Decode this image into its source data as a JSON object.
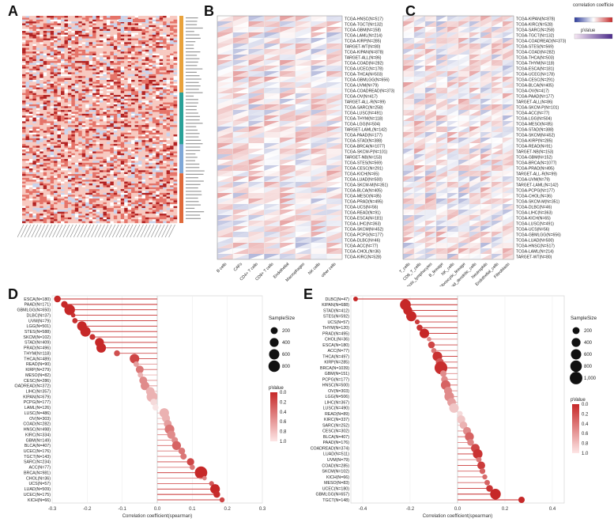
{
  "panels": {
    "A": "A",
    "B": "B",
    "C": "C",
    "D": "D",
    "E": "E"
  },
  "legends": {
    "corr_title": "correlation coefficient",
    "pvalue_title": "pValue",
    "samplesize_title": "SampleSize",
    "pvalue_bubble_title": "pValue"
  },
  "colors": {
    "neg": "#2b3a9a",
    "pos": "#c62828",
    "light_pos": "#f4b6b0",
    "light_neg": "#c7cfe8"
  },
  "heatmap_B": {
    "cells": [
      "B cells",
      "CAFs",
      "CD4+ T cells",
      "CD8+ T cells",
      "Endothelial",
      "Macrophages",
      "NK cells",
      "other cells"
    ],
    "cancers": [
      "TCGA-HNSC(N=517)",
      "TCGA-TGCT(N=132)",
      "TCGA-GBM(N=158)",
      "TCGA-LAML(N=214)",
      "TCGA-KIRP(N=285)",
      "TARGET-WT(N=80)",
      "TCGA-KIPAN(N=878)",
      "TARGET-ALL(N=86)",
      "TCGA-COAD(N=282)",
      "TCGA-UCEC(N=178)",
      "TCGA-THCA(N=503)",
      "TCGA-GBMLGG(N=656)",
      "TCGA-UVM(N=79)",
      "TCGA-COADREAD(N=373)",
      "TCGA-OV(N=417)",
      "TARGET-ALL-R(N=99)",
      "TCGA-SARC(N=258)",
      "TCGA-LUSC(N=491)",
      "TCGA-THYM(N=118)",
      "TCGA-LGG(N=504)",
      "TARGET-LAML(N=142)",
      "TCGA-PAAD(N=177)",
      "TCGA-STAD(N=388)",
      "TCGA-BRCA(N=1077)",
      "TCGA-SKCM-P(N=101)",
      "TARGET-NB(N=153)",
      "TCGA-STES(N=569)",
      "TCGA-CESC(N=291)",
      "TCGA-KICH(N=65)",
      "TCGA-LUAD(N=500)",
      "TCGA-SKCM-M(N=351)",
      "TCGA-BLCA(N=405)",
      "TCGA-MESO(N=85)",
      "TCGA-PRAD(N=495)",
      "TCGA-UCS(N=56)",
      "TCGA-READ(N=91)",
      "TCGA-ESCA(N=181)",
      "TCGA-LIHC(N=363)",
      "TCGA-SKCM(N=452)",
      "TCGA-PCPG(N=177)",
      "TCGA-DLBC(N=46)",
      "TCGA-ACC(N=77)",
      "TCGA-CHOL(N=36)",
      "TCGA-KIRC(N=528)"
    ]
  },
  "heatmap_C": {
    "cells": [
      "T_cells",
      "CD8_T_cells",
      "Cytotoxic_lymphocytes",
      "B_lineage",
      "NK_cells",
      "Monocytic_lineage",
      "Myeloid_dendritic_cells",
      "Neutrophils",
      "Endothelial_cells",
      "Fibroblasts"
    ],
    "cancers": [
      "TCGA-KIPAN(N=878)",
      "TCGA-KIRC(N=528)",
      "TCGA-SARC(N=258)",
      "TCGA-TGCT(N=132)",
      "TCGA-COADREAD(N=373)",
      "TCGA-STES(N=569)",
      "TCGA-COAD(N=282)",
      "TCGA-THCA(N=503)",
      "TCGA-THYM(N=118)",
      "TCGA-ESCA(N=181)",
      "TCGA-UCEC(N=178)",
      "TCGA-CESC(N=291)",
      "TCGA-BLCA(N=405)",
      "TCGA-OV(N=417)",
      "TCGA-PAAD(N=177)",
      "TARGET-ALL(N=86)",
      "TCGA-SKCM-P(N=101)",
      "TCGA-ACC(N=77)",
      "TCGA-LGG(N=504)",
      "TCGA-MESO(N=85)",
      "TCGA-STAD(N=388)",
      "TCGA-SKCM(N=452)",
      "TCGA-KIRP(N=285)",
      "TCGA-READ(N=91)",
      "TARGET-NB(N=153)",
      "TCGA-GBM(N=152)",
      "TCGA-BRCA(N=1077)",
      "TCGA-PRAD(N=495)",
      "TARGET-ALL-R(N=99)",
      "TCGA-UVM(N=79)",
      "TARGET-LAML(N=142)",
      "TCGA-PCPG(N=177)",
      "TCGA-CHOL(N=36)",
      "TCGA-SKCM-M(N=351)",
      "TCGA-DLBC(N=46)",
      "TCGA-LIHC(N=363)",
      "TCGA-KICH(N=65)",
      "TCGA-LUSC(N=491)",
      "TCGA-UCS(N=56)",
      "TCGA-GBMLGG(N=656)",
      "TCGA-LUAD(N=500)",
      "TCGA-HNSC(N=517)",
      "TCGA-LAML(N=214)",
      "TARGET-WT(N=80)"
    ]
  },
  "chart_data": [
    {
      "type": "scatter",
      "panel": "D",
      "xlabel": "Correlation coefficient(spearman)",
      "xlim": [
        -0.3,
        0.3
      ],
      "xticks": [
        -0.3,
        -0.2,
        -0.1,
        0.0,
        0.1,
        0.2,
        0.3
      ],
      "size_legend": [
        200,
        400,
        600,
        800
      ],
      "p_legend": [
        0.0,
        0.2,
        0.4,
        0.6,
        0.8,
        1.0
      ],
      "points": [
        {
          "label": "ESCA(N=180)",
          "x": -0.285,
          "p": 0.0001,
          "n": 180
        },
        {
          "label": "PAAD(N=171)",
          "x": -0.265,
          "p": 0.0005,
          "n": 171
        },
        {
          "label": "GBMLGG(N=650)",
          "x": -0.25,
          "p": 0.0001,
          "n": 650
        },
        {
          "label": "DLBC(N=37)",
          "x": -0.24,
          "p": 0.05,
          "n": 37
        },
        {
          "label": "UVM(N=79)",
          "x": -0.235,
          "p": 0.04,
          "n": 79
        },
        {
          "label": "LGG(N=501)",
          "x": -0.215,
          "p": 0.0001,
          "n": 501
        },
        {
          "label": "STES(N=588)",
          "x": -0.205,
          "p": 0.0001,
          "n": 588
        },
        {
          "label": "SKCM(N=102)",
          "x": -0.185,
          "p": 0.05,
          "n": 102
        },
        {
          "label": "STAD(N=409)",
          "x": -0.165,
          "p": 0.001,
          "n": 409
        },
        {
          "label": "PRAD(N=496)",
          "x": -0.16,
          "p": 0.001,
          "n": 496
        },
        {
          "label": "THYM(N=118)",
          "x": -0.115,
          "p": 0.2,
          "n": 118
        },
        {
          "label": "THCA(N=489)",
          "x": -0.065,
          "p": 0.15,
          "n": 489
        },
        {
          "label": "READ(N=90)",
          "x": -0.06,
          "p": 0.6,
          "n": 90
        },
        {
          "label": "KIRP(N=279)",
          "x": -0.05,
          "p": 0.4,
          "n": 279
        },
        {
          "label": "MESO(N=82)",
          "x": -0.048,
          "p": 0.7,
          "n": 82
        },
        {
          "label": "CESC(N=286)",
          "x": -0.04,
          "p": 0.5,
          "n": 286
        },
        {
          "label": "COADREAD(N=372)",
          "x": -0.035,
          "p": 0.5,
          "n": 372
        },
        {
          "label": "LIHC(N=357)",
          "x": -0.02,
          "p": 0.7,
          "n": 357
        },
        {
          "label": "KIPAN(N=679)",
          "x": -0.015,
          "p": 0.7,
          "n": 679
        },
        {
          "label": "PCPG(N=177)",
          "x": -0.01,
          "p": 0.9,
          "n": 177
        },
        {
          "label": "LAML(N=126)",
          "x": -0.005,
          "p": 0.95,
          "n": 126
        },
        {
          "label": "LUSC(N=486)",
          "x": 0.02,
          "p": 0.7,
          "n": 486
        },
        {
          "label": "OV(N=303)",
          "x": 0.025,
          "p": 0.7,
          "n": 303
        },
        {
          "label": "COAD(N=282)",
          "x": 0.03,
          "p": 0.6,
          "n": 282
        },
        {
          "label": "HNSC(N=498)",
          "x": 0.035,
          "p": 0.4,
          "n": 498
        },
        {
          "label": "KIRC(N=334)",
          "x": 0.04,
          "p": 0.5,
          "n": 334
        },
        {
          "label": "GBM(N=149)",
          "x": 0.05,
          "p": 0.5,
          "n": 149
        },
        {
          "label": "BLCA(N=407)",
          "x": 0.055,
          "p": 0.3,
          "n": 407
        },
        {
          "label": "UCEC(N=176)",
          "x": 0.07,
          "p": 0.4,
          "n": 176
        },
        {
          "label": "TGCT(N=143)",
          "x": 0.075,
          "p": 0.4,
          "n": 143
        },
        {
          "label": "SARC(N=234)",
          "x": 0.095,
          "p": 0.15,
          "n": 234
        },
        {
          "label": "ACC(N=77)",
          "x": 0.1,
          "p": 0.4,
          "n": 77
        },
        {
          "label": "BRCA(N=981)",
          "x": 0.125,
          "p": 0.0001,
          "n": 981
        },
        {
          "label": "CHOL(N=36)",
          "x": 0.135,
          "p": 0.45,
          "n": 36
        },
        {
          "label": "UCS(N=57)",
          "x": 0.155,
          "p": 0.25,
          "n": 57
        },
        {
          "label": "LUAD(N=509)",
          "x": 0.165,
          "p": 0.0005,
          "n": 509
        },
        {
          "label": "UCEC(N=175)",
          "x": 0.17,
          "p": 0.02,
          "n": 175
        },
        {
          "label": "KICH(N=66)",
          "x": 0.185,
          "p": 0.15,
          "n": 66
        }
      ]
    },
    {
      "type": "scatter",
      "panel": "E",
      "xlabel": "Correlation coefficient(spearman)",
      "xlim": [
        -0.45,
        0.45
      ],
      "xticks": [
        -0.4,
        -0.2,
        0.0,
        0.2,
        0.4
      ],
      "size_legend": [
        200,
        400,
        600,
        800,
        1000
      ],
      "size_legend_labels": [
        "200",
        "400",
        "600",
        "800",
        "1,000"
      ],
      "p_legend": [
        0.0,
        0.2,
        0.4,
        0.6,
        0.8,
        1.0
      ],
      "points": [
        {
          "label": "DLBC(N=47)",
          "x": -0.43,
          "p": 0.001,
          "n": 47
        },
        {
          "label": "KIPAN(N=688)",
          "x": -0.22,
          "p": 0.0001,
          "n": 688
        },
        {
          "label": "STAD(N=412)",
          "x": -0.21,
          "p": 0.0001,
          "n": 412
        },
        {
          "label": "STES(N=592)",
          "x": -0.195,
          "p": 0.0001,
          "n": 592
        },
        {
          "label": "UCS(N=57)",
          "x": -0.17,
          "p": 0.1,
          "n": 57
        },
        {
          "label": "THYM(N=120)",
          "x": -0.16,
          "p": 0.05,
          "n": 120
        },
        {
          "label": "PRAD(N=495)",
          "x": -0.14,
          "p": 0.002,
          "n": 495
        },
        {
          "label": "CHOL(N=36)",
          "x": -0.12,
          "p": 0.5,
          "n": 36
        },
        {
          "label": "ESCA(N=180)",
          "x": -0.11,
          "p": 0.15,
          "n": 180
        },
        {
          "label": "ACC(N=77)",
          "x": -0.1,
          "p": 0.4,
          "n": 77
        },
        {
          "label": "THCA(N=497)",
          "x": -0.085,
          "p": 0.05,
          "n": 497
        },
        {
          "label": "KIRP(N=285)",
          "x": -0.075,
          "p": 0.25,
          "n": 285
        },
        {
          "label": "BRCA(N=1039)",
          "x": -0.07,
          "p": 0.03,
          "n": 1039
        },
        {
          "label": "GBM(N=151)",
          "x": -0.06,
          "p": 0.5,
          "n": 151
        },
        {
          "label": "PCPG(N=177)",
          "x": -0.055,
          "p": 0.5,
          "n": 177
        },
        {
          "label": "HNSC(N=500)",
          "x": -0.05,
          "p": 0.3,
          "n": 500
        },
        {
          "label": "OV(N=303)",
          "x": -0.04,
          "p": 0.5,
          "n": 303
        },
        {
          "label": "LGG(N=506)",
          "x": -0.035,
          "p": 0.5,
          "n": 506
        },
        {
          "label": "LIHC(N=367)",
          "x": -0.025,
          "p": 0.6,
          "n": 367
        },
        {
          "label": "LUSC(N=490)",
          "x": -0.015,
          "p": 0.8,
          "n": 490
        },
        {
          "label": "READ(N=89)",
          "x": 0.01,
          "p": 0.9,
          "n": 89
        },
        {
          "label": "KIRC(N=337)",
          "x": 0.015,
          "p": 0.8,
          "n": 337
        },
        {
          "label": "SARC(N=252)",
          "x": 0.025,
          "p": 0.7,
          "n": 252
        },
        {
          "label": "CESC(N=302)",
          "x": 0.04,
          "p": 0.5,
          "n": 302
        },
        {
          "label": "BLCA(N=407)",
          "x": 0.05,
          "p": 0.3,
          "n": 407
        },
        {
          "label": "PAAD(N=176)",
          "x": 0.055,
          "p": 0.45,
          "n": 176
        },
        {
          "label": "COADREAD(N=374)",
          "x": 0.075,
          "p": 0.15,
          "n": 374
        },
        {
          "label": "LUAD(N=511)",
          "x": 0.085,
          "p": 0.05,
          "n": 511
        },
        {
          "label": "UVM(N=79)",
          "x": 0.09,
          "p": 0.4,
          "n": 79
        },
        {
          "label": "COAD(N=285)",
          "x": 0.1,
          "p": 0.1,
          "n": 285
        },
        {
          "label": "SKCM(N=102)",
          "x": 0.105,
          "p": 0.3,
          "n": 102
        },
        {
          "label": "KICH(N=66)",
          "x": 0.115,
          "p": 0.35,
          "n": 66
        },
        {
          "label": "MESO(N=83)",
          "x": 0.125,
          "p": 0.3,
          "n": 83
        },
        {
          "label": "UCEC(N=180)",
          "x": 0.135,
          "p": 0.06,
          "n": 180
        },
        {
          "label": "GBMLGG(N=657)",
          "x": 0.16,
          "p": 0.0001,
          "n": 657
        },
        {
          "label": "TGCT(N=148)",
          "x": 0.27,
          "p": 0.001,
          "n": 148
        }
      ]
    }
  ]
}
